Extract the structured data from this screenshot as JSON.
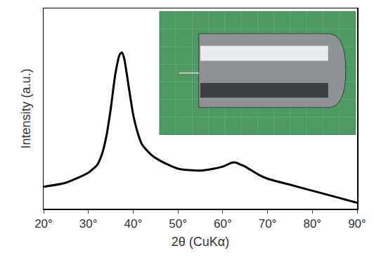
{
  "chart_data": {
    "type": "line",
    "x_label": "2θ (CuKα)",
    "y_label": "Intensity (a.u.)",
    "x": [
      20,
      25,
      30,
      32,
      33,
      34,
      35,
      36,
      37,
      37.5,
      38,
      39,
      40,
      41,
      42,
      44,
      46,
      50,
      55,
      58,
      60,
      62,
      63,
      64,
      65,
      68,
      70,
      75,
      80,
      85,
      90
    ],
    "values": [
      11,
      13,
      18,
      22,
      27,
      36,
      50,
      67,
      77,
      78,
      75,
      61,
      47,
      38,
      32,
      27,
      24,
      20,
      19,
      20,
      21,
      23,
      23,
      22,
      21,
      17,
      15,
      12,
      9,
      6,
      3
    ],
    "color": "#000000",
    "xlim": [
      20,
      90
    ],
    "xticks": [
      {
        "value": 20,
        "label": "20°"
      },
      {
        "value": 30,
        "label": "30°"
      },
      {
        "value": 40,
        "label": "40°"
      },
      {
        "value": 50,
        "label": "50°"
      },
      {
        "value": 60,
        "label": "60°"
      },
      {
        "value": 70,
        "label": "70°"
      },
      {
        "value": 80,
        "label": "80°"
      },
      {
        "value": 90,
        "label": "90°"
      }
    ],
    "ylim": [
      0,
      100
    ],
    "tick_labels": "x",
    "grid": false,
    "line_style": "solid"
  }
}
